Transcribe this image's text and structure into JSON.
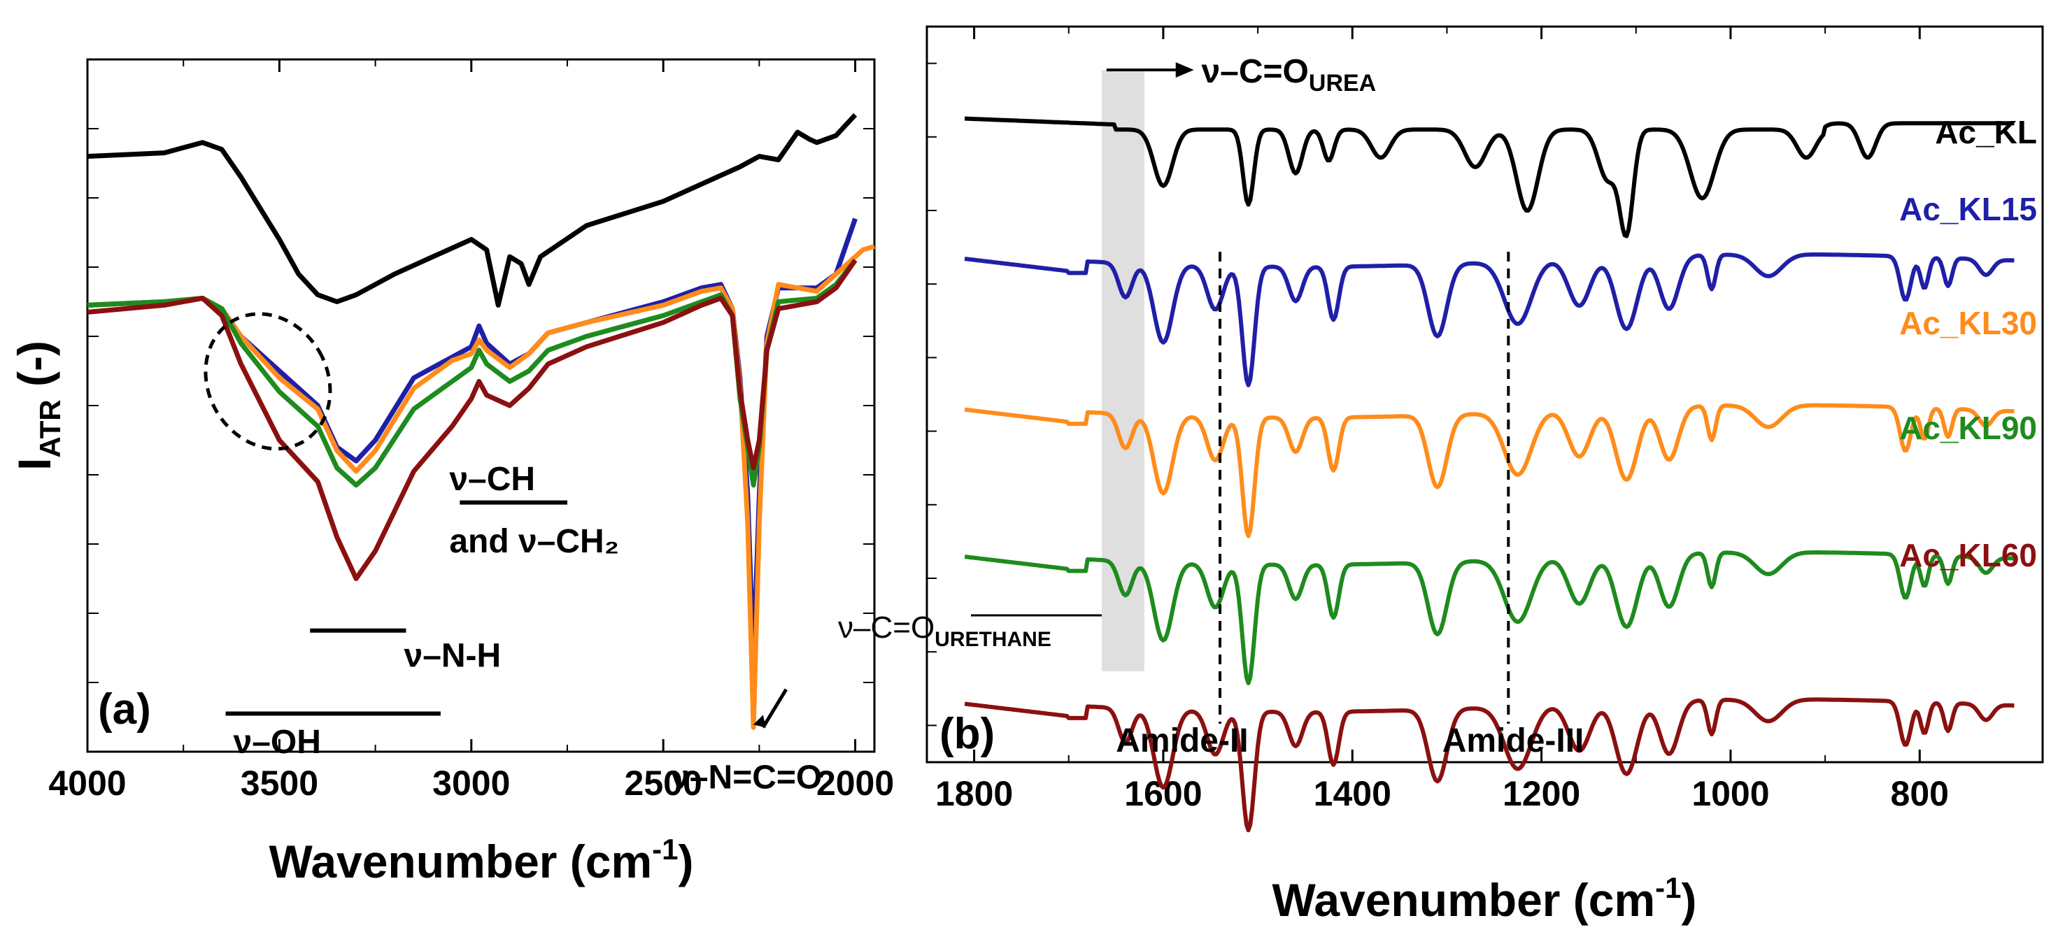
{
  "chart_data": [
    {
      "panel": "(a)",
      "type": "line",
      "xlabel": "Wavenumber (cm⁻¹)",
      "xlabel_main": "Wavenumber (cm",
      "xlabel_sup": "-1",
      "xlabel_close": ")",
      "ylabel": "I_ATR (-)",
      "ylabel_main": "I",
      "ylabel_sub": "ATR",
      "ylabel_tail": " (-)",
      "xlim": [
        4000,
        1950
      ],
      "ylim": [
        0,
        10
      ],
      "xticks": [
        4000,
        3500,
        3000,
        2500,
        2000
      ],
      "grid": false,
      "series": [
        {
          "name": "Ac_KL",
          "color": "#000000",
          "points": [
            [
              4000,
              8.6
            ],
            [
              3800,
              8.65
            ],
            [
              3700,
              8.8
            ],
            [
              3650,
              8.7
            ],
            [
              3600,
              8.3
            ],
            [
              3500,
              7.4
            ],
            [
              3450,
              6.9
            ],
            [
              3400,
              6.6
            ],
            [
              3350,
              6.5
            ],
            [
              3300,
              6.6
            ],
            [
              3200,
              6.9
            ],
            [
              3100,
              7.15
            ],
            [
              3000,
              7.4
            ],
            [
              2960,
              7.25
            ],
            [
              2930,
              6.45
            ],
            [
              2900,
              7.15
            ],
            [
              2870,
              7.05
            ],
            [
              2850,
              6.75
            ],
            [
              2820,
              7.15
            ],
            [
              2700,
              7.6
            ],
            [
              2500,
              7.95
            ],
            [
              2400,
              8.2
            ],
            [
              2300,
              8.45
            ],
            [
              2250,
              8.6
            ],
            [
              2200,
              8.55
            ],
            [
              2150,
              8.95
            ],
            [
              2120,
              8.85
            ],
            [
              2100,
              8.8
            ],
            [
              2050,
              8.9
            ],
            [
              2000,
              9.2
            ]
          ]
        },
        {
          "name": "Ac_KL15",
          "color": "#1f1fa8",
          "points": [
            [
              4000,
              6.45
            ],
            [
              3800,
              6.5
            ],
            [
              3700,
              6.55
            ],
            [
              3650,
              6.4
            ],
            [
              3600,
              6.0
            ],
            [
              3500,
              5.5
            ],
            [
              3400,
              5.0
            ],
            [
              3350,
              4.4
            ],
            [
              3300,
              4.2
            ],
            [
              3250,
              4.5
            ],
            [
              3150,
              5.4
            ],
            [
              3050,
              5.7
            ],
            [
              3000,
              5.85
            ],
            [
              2980,
              6.15
            ],
            [
              2960,
              5.9
            ],
            [
              2900,
              5.6
            ],
            [
              2850,
              5.75
            ],
            [
              2800,
              6.05
            ],
            [
              2700,
              6.2
            ],
            [
              2500,
              6.5
            ],
            [
              2400,
              6.7
            ],
            [
              2350,
              6.75
            ],
            [
              2320,
              6.4
            ],
            [
              2300,
              5.4
            ],
            [
              2280,
              3.7
            ],
            [
              2265,
              1.3
            ],
            [
              2250,
              3.7
            ],
            [
              2230,
              6.0
            ],
            [
              2200,
              6.7
            ],
            [
              2100,
              6.7
            ],
            [
              2050,
              6.9
            ],
            [
              2000,
              7.7
            ]
          ]
        },
        {
          "name": "Ac_KL30",
          "color": "#ff8c1a",
          "points": [
            [
              4000,
              6.45
            ],
            [
              3800,
              6.5
            ],
            [
              3700,
              6.55
            ],
            [
              3650,
              6.4
            ],
            [
              3600,
              6.0
            ],
            [
              3500,
              5.4
            ],
            [
              3400,
              4.95
            ],
            [
              3350,
              4.35
            ],
            [
              3300,
              4.05
            ],
            [
              3250,
              4.35
            ],
            [
              3150,
              5.25
            ],
            [
              3050,
              5.65
            ],
            [
              3000,
              5.75
            ],
            [
              2980,
              5.95
            ],
            [
              2960,
              5.8
            ],
            [
              2900,
              5.55
            ],
            [
              2850,
              5.75
            ],
            [
              2800,
              6.05
            ],
            [
              2700,
              6.2
            ],
            [
              2500,
              6.45
            ],
            [
              2400,
              6.65
            ],
            [
              2350,
              6.7
            ],
            [
              2320,
              6.4
            ],
            [
              2300,
              5.3
            ],
            [
              2280,
              3.3
            ],
            [
              2265,
              0.35
            ],
            [
              2250,
              3.3
            ],
            [
              2230,
              5.9
            ],
            [
              2200,
              6.75
            ],
            [
              2100,
              6.65
            ],
            [
              2050,
              6.9
            ],
            [
              1980,
              7.25
            ],
            [
              1950,
              7.3
            ]
          ]
        },
        {
          "name": "Ac_KL90",
          "color": "#1e8b1e",
          "points": [
            [
              4000,
              6.45
            ],
            [
              3800,
              6.5
            ],
            [
              3700,
              6.55
            ],
            [
              3650,
              6.4
            ],
            [
              3600,
              5.9
            ],
            [
              3500,
              5.2
            ],
            [
              3400,
              4.7
            ],
            [
              3350,
              4.1
            ],
            [
              3300,
              3.85
            ],
            [
              3250,
              4.1
            ],
            [
              3150,
              4.95
            ],
            [
              3050,
              5.35
            ],
            [
              3000,
              5.55
            ],
            [
              2980,
              5.8
            ],
            [
              2960,
              5.6
            ],
            [
              2900,
              5.35
            ],
            [
              2850,
              5.5
            ],
            [
              2800,
              5.8
            ],
            [
              2700,
              6.0
            ],
            [
              2500,
              6.3
            ],
            [
              2400,
              6.5
            ],
            [
              2350,
              6.6
            ],
            [
              2320,
              6.3
            ],
            [
              2300,
              5.1
            ],
            [
              2280,
              4.4
            ],
            [
              2265,
              3.85
            ],
            [
              2250,
              4.4
            ],
            [
              2230,
              5.8
            ],
            [
              2200,
              6.5
            ],
            [
              2100,
              6.55
            ],
            [
              2050,
              6.75
            ],
            [
              2000,
              7.1
            ]
          ]
        },
        {
          "name": "Ac_KL60",
          "color": "#8b1010",
          "points": [
            [
              4000,
              6.35
            ],
            [
              3800,
              6.45
            ],
            [
              3700,
              6.55
            ],
            [
              3650,
              6.3
            ],
            [
              3600,
              5.6
            ],
            [
              3500,
              4.5
            ],
            [
              3400,
              3.9
            ],
            [
              3350,
              3.1
            ],
            [
              3300,
              2.5
            ],
            [
              3250,
              2.9
            ],
            [
              3150,
              4.05
            ],
            [
              3050,
              4.7
            ],
            [
              3000,
              5.1
            ],
            [
              2980,
              5.35
            ],
            [
              2960,
              5.15
            ],
            [
              2900,
              5.0
            ],
            [
              2850,
              5.25
            ],
            [
              2800,
              5.6
            ],
            [
              2700,
              5.85
            ],
            [
              2500,
              6.2
            ],
            [
              2400,
              6.45
            ],
            [
              2350,
              6.55
            ],
            [
              2320,
              6.3
            ],
            [
              2300,
              5.2
            ],
            [
              2280,
              4.5
            ],
            [
              2265,
              4.1
            ],
            [
              2250,
              4.5
            ],
            [
              2230,
              5.8
            ],
            [
              2200,
              6.4
            ],
            [
              2100,
              6.5
            ],
            [
              2050,
              6.7
            ],
            [
              2000,
              7.1
            ]
          ]
        }
      ],
      "annotations": [
        {
          "text": "ν–CH",
          "x": 3030,
          "y": 3.9
        },
        {
          "text": "and ν–CH₂",
          "x": 3030,
          "y": 3.0
        },
        {
          "text": "ν–N-H",
          "x": 3190,
          "y": 1.35
        },
        {
          "text": "ν–OH",
          "x": 3620,
          "y": 0.1
        },
        {
          "text": "ν–N=C=O",
          "x": 2480,
          "y": -0.35
        }
      ]
    },
    {
      "panel": "(b)",
      "type": "line",
      "xlabel": "Wavenumber (cm⁻¹)",
      "xlabel_main": "Wavenumber (cm",
      "xlabel_sup": "-1",
      "xlabel_close": ")",
      "xlim": [
        1850,
        670
      ],
      "ylim": [
        0,
        10
      ],
      "xticks": [
        1800,
        1600,
        1400,
        1200,
        1000,
        800
      ],
      "grid": false,
      "series": [
        {
          "name": "Ac_KL",
          "color": "#000000",
          "offset": 8.6
        },
        {
          "name": "Ac_KL15",
          "color": "#1f1fa8",
          "offset": 6.65
        },
        {
          "name": "Ac_KL30",
          "color": "#ff8c1a",
          "offset": 4.6
        },
        {
          "name": "Ac_KL90",
          "color": "#1e8b1e",
          "offset": 2.6
        },
        {
          "name": "Ac_KL60",
          "color": "#8b1010",
          "offset": 0.6
        }
      ],
      "legend": [
        "Ac_KL",
        "Ac_KL15",
        "Ac_KL30",
        "Ac_KL90",
        "Ac_KL60"
      ],
      "highlight_band": [
        1665,
        1620
      ],
      "dashed_lines": [
        1540,
        1235
      ],
      "annotations": [
        {
          "text": "ν–C=O",
          "sub": "UREA"
        },
        {
          "text": "ν–C=O",
          "sub": "URETHANE"
        },
        {
          "text": "Amide-II",
          "x": 1580
        },
        {
          "text": "Amide-III",
          "x": 1230
        }
      ]
    }
  ]
}
